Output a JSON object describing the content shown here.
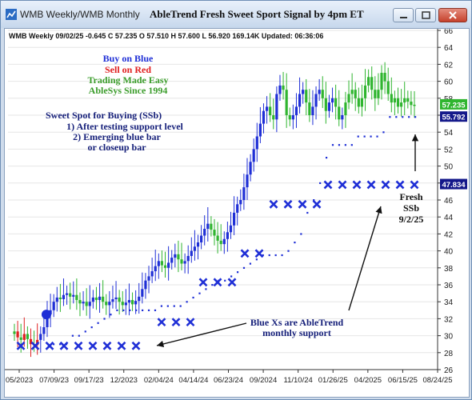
{
  "window": {
    "title_left": "WMB  Weekly/WMB  Monthly",
    "title_main": "AbleTrend Fresh Sweet Sport Signal by 4pm ET"
  },
  "chart_info": "WMB  Weekly 09/02/25 -0.645 C 57.235 O 57.510 H 57.600 L 56.920 169.14K Updated: 06:36:06",
  "legend": {
    "line1": "Buy on Blue",
    "line2": "Sell on Red",
    "line3": "Trading Made Easy",
    "line4": "AbleSys Since 1994"
  },
  "sweet_spot": {
    "heading": "Sweet Spot for Buying (SSb)",
    "item1": "1) After testing support level",
    "item2": "2) Emerging blue bar",
    "item3": "or closeup bar"
  },
  "annotations": {
    "fresh1": "Fresh",
    "fresh2": "SSb",
    "fresh3": "9/2/25",
    "bluex1": "Blue Xs are AbleTrend",
    "bluex2": "monthly support"
  },
  "price_tags": {
    "last": "57.235",
    "stop_blue": "55.792",
    "monthly": "47.834"
  },
  "colors": {
    "blue": "#1f2fd6",
    "green": "#2fb52f",
    "red": "#e02020",
    "navy": "#16207a",
    "green_text": "#3a9c2a"
  },
  "chart_data": {
    "type": "candlestick",
    "y_ticks": [
      26,
      28,
      30,
      32,
      34,
      36,
      38,
      40,
      42,
      44,
      46,
      48,
      50,
      52,
      54,
      56,
      58,
      60,
      62,
      64,
      66
    ],
    "ylim": [
      26,
      66
    ],
    "x_labels": [
      "05/2023",
      "07/09/23",
      "09/17/23",
      "12/2023",
      "02/04/24",
      "04/14/24",
      "06/23/24",
      "09/2024",
      "11/10/24",
      "01/26/25",
      "04/2025",
      "06/15/25",
      "08/24/25"
    ],
    "close_approx": [
      30.5,
      29.8,
      29.5,
      30.2,
      29.6,
      29.0,
      28.9,
      29.5,
      30.2,
      31.0,
      32.5,
      33.0,
      34.0,
      34.5,
      34.3,
      34.8,
      35.0,
      34.6,
      34.8,
      34.2,
      33.8,
      34.0,
      33.5,
      34.0,
      34.5,
      34.2,
      34.6,
      34.0,
      33.6,
      34.0,
      34.3,
      34.5,
      34.0,
      33.6,
      33.9,
      34.2,
      33.7,
      34.1,
      34.6,
      35.5,
      36.5,
      37.0,
      37.6,
      38.2,
      38.8,
      38.3,
      38.0,
      38.6,
      39.2,
      39.6,
      39.0,
      38.5,
      38.8,
      39.4,
      40.0,
      40.5,
      41.0,
      41.8,
      42.6,
      43.2,
      42.5,
      41.8,
      41.2,
      40.8,
      41.4,
      42.2,
      43.0,
      44.5,
      45.5,
      46.0,
      47.5,
      49.0,
      50.5,
      52.0,
      53.5,
      55.0,
      56.5,
      57.0,
      56.0,
      55.5,
      58.5,
      59.5,
      59.0,
      56.0,
      55.5,
      56.0,
      57.0,
      58.5,
      59.0,
      57.5,
      56.0,
      57.0,
      58.5,
      59.0,
      58.0,
      56.5,
      57.5,
      58.0,
      57.0,
      55.5,
      56.0,
      57.5,
      58.5,
      59.0,
      58.0,
      57.0,
      58.0,
      59.5,
      60.5,
      59.0,
      58.0,
      59.0,
      61.0,
      60.0,
      58.5,
      57.5,
      58.0,
      57.0,
      57.5,
      58.0,
      57.6,
      57.2,
      57.235
    ],
    "stop_level_approx": [
      29.0,
      29.0,
      29.0,
      30.0,
      30.0,
      30.5,
      31.0,
      31.5,
      32.0,
      32.5,
      33.0,
      33.0,
      33.0,
      33.0,
      33.0,
      33.0,
      33.0,
      33.5,
      33.5,
      33.5,
      33.5,
      34.0,
      34.5,
      35.0,
      35.5,
      36.0,
      36.5,
      36.5,
      37.0,
      37.5,
      38.0,
      38.5,
      39.0,
      39.5,
      39.5,
      39.5,
      39.5,
      40.0,
      41.0,
      42.0,
      44.5,
      46.0,
      48.0,
      51.0,
      52.5,
      52.5,
      52.5,
      52.5,
      53.5,
      53.5,
      53.5,
      53.5,
      54.0,
      55.8,
      55.8,
      55.8,
      55.8,
      55.8
    ],
    "monthly_support": [
      {
        "label": "05/2023-02/04/24",
        "value": 28.8
      },
      {
        "label": "02/04/24-04/14/24",
        "value": 31.6
      },
      {
        "label": "04/14/24-09/2024",
        "value": 36.3
      },
      {
        "label": "09/2024",
        "value": 39.7
      },
      {
        "label": "11/10/24-01/26/25",
        "value": 45.5
      },
      {
        "label": "04/2025-08/24/25",
        "value": 47.8
      }
    ],
    "last_close": 57.235
  }
}
